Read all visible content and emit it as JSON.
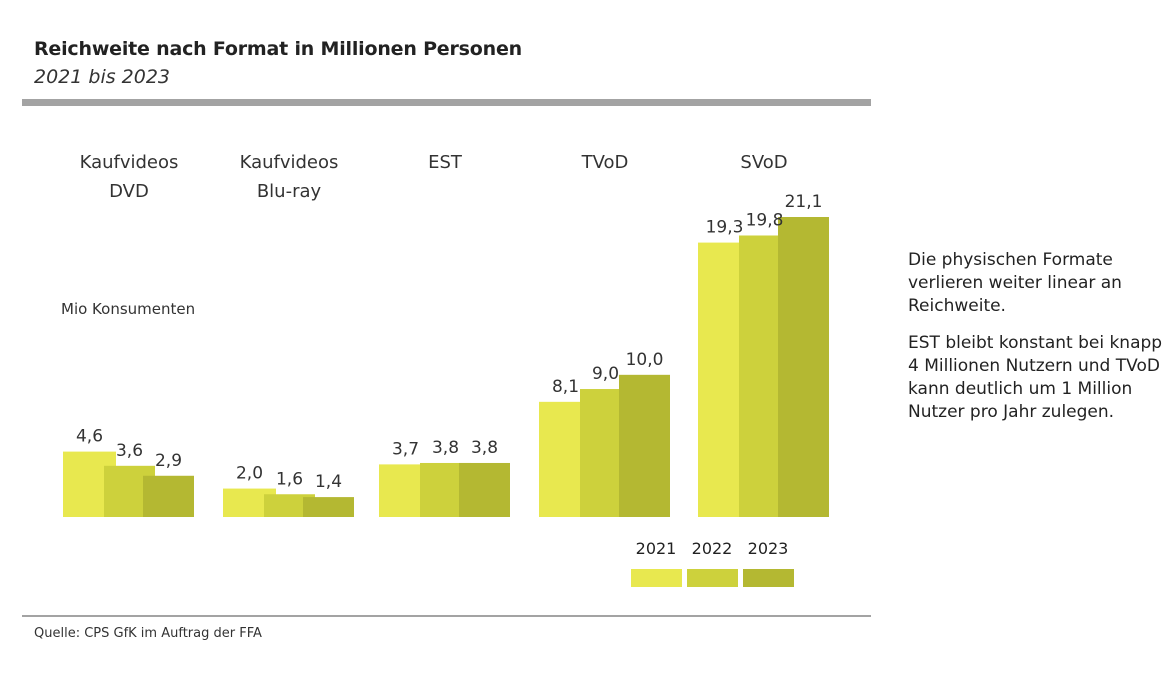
{
  "title": "Reichweite nach Format in Millionen Personen",
  "subtitle": "2021 bis 2023",
  "source": "Quelle: CPS GfK im Auftrag der FFA",
  "notes": [
    "Die physischen Formate verlieren weiter linear an Reichweite.",
    "EST bleibt konstant bei knapp 4 Millionen Nutzern und TVoD kann deutlich um 1 Million Nutzer pro Jahr zulegen."
  ],
  "chart_data": {
    "type": "bar",
    "ylabel": "Mio Konsumenten",
    "ylim": [
      0,
      21.1
    ],
    "categories": [
      {
        "lines": [
          "Kaufvideos",
          "DVD"
        ]
      },
      {
        "lines": [
          "Kaufvideos",
          "Blu-ray"
        ]
      },
      {
        "lines": [
          "EST"
        ]
      },
      {
        "lines": [
          "TVoD"
        ]
      },
      {
        "lines": [
          "SVoD"
        ]
      }
    ],
    "series": [
      {
        "name": "2021",
        "color": "#e8e84f",
        "values": [
          4.6,
          2.0,
          3.7,
          8.1,
          19.3
        ],
        "labels": [
          "4,6",
          "2,0",
          "3,7",
          "8,1",
          "19,3"
        ]
      },
      {
        "name": "2022",
        "color": "#cdd13c",
        "values": [
          3.6,
          1.6,
          3.8,
          9.0,
          19.8
        ],
        "labels": [
          "3,6",
          "1,6",
          "3,8",
          "9,0",
          "19,8"
        ]
      },
      {
        "name": "2023",
        "color": "#b4b832",
        "values": [
          2.9,
          1.4,
          3.8,
          10.0,
          21.1
        ],
        "labels": [
          "2,9",
          "1,4",
          "3,8",
          "10,0",
          "21,1"
        ]
      }
    ]
  }
}
